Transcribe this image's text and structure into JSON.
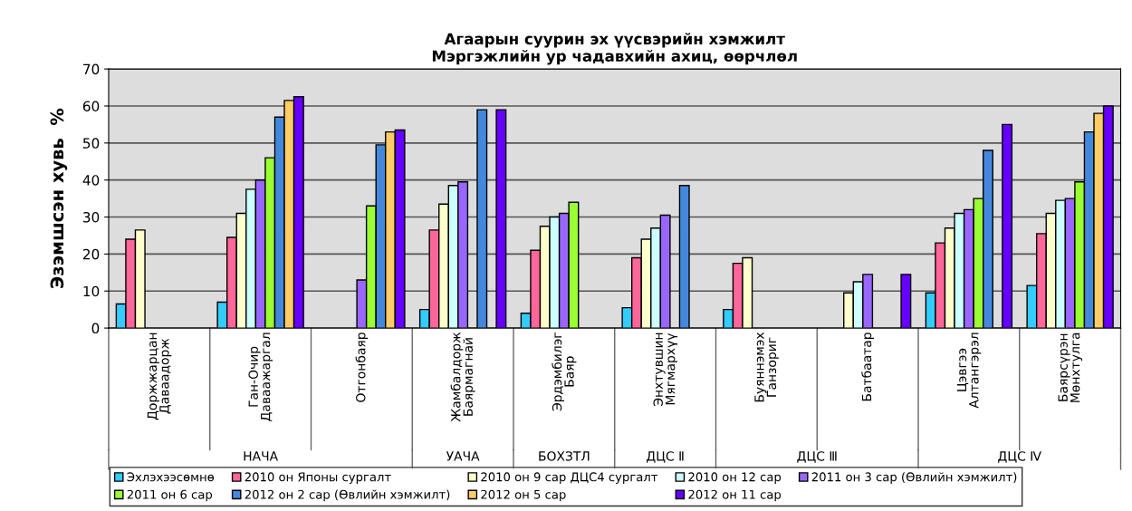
{
  "chart_data": {
    "type": "bar",
    "title": "Агаарын суурин эх үүсвэрийн хэмжилт\nМэргэжлийн ур чадавхийн ахиц, өөрчлөл",
    "ylabel": "Эзэмшсэн хувь  %",
    "categories": [
      "Доржжарцан\nДаваадорж",
      "Ган-Очир\nДаваажаргал",
      "Отгонбаяр",
      "Жамбалдорж\nБаярмагнай",
      "Эрдэмбилэг\nБаяр",
      "Энхтувшин\nМягмархүү",
      "Буяннэмэх\nГанзориг",
      "Батбаатар",
      "Цэвгээ\nАлтангэрэл",
      "Баярсүрэн\nМөнхтулга"
    ],
    "series": [
      {
        "name": "Эхлэхээсөмнө",
        "color": "#33ccff",
        "values": [
          6.5,
          7,
          null,
          5,
          4,
          5.5,
          5,
          null,
          9.5,
          11.5
        ]
      },
      {
        "name": "2010 он Японы сургалт",
        "color": "#ff6699",
        "values": [
          24,
          24.5,
          null,
          26.5,
          21,
          19,
          17.5,
          null,
          23,
          25.5
        ]
      },
      {
        "name": "2010 он 9 сар ДЦС4 сургалт",
        "color": "#ffffcc",
        "values": [
          26.5,
          31,
          null,
          33.5,
          27.5,
          24,
          19,
          9.5,
          27,
          31
        ]
      },
      {
        "name": "2010 он 12 сар",
        "color": "#ccffff",
        "values": [
          null,
          37.5,
          null,
          38.5,
          30,
          27,
          null,
          12.5,
          31,
          34.5
        ]
      },
      {
        "name": "2011 он 3 сар (Өвлийн хэмжилт)",
        "color": "#9966ff",
        "values": [
          null,
          40,
          13,
          39.5,
          31,
          30.5,
          null,
          14.5,
          32,
          35
        ]
      },
      {
        "name": "2011 он 6 сар",
        "color": "#99ff33",
        "values": [
          null,
          46,
          33,
          null,
          34,
          null,
          null,
          null,
          35,
          39.5
        ]
      },
      {
        "name": "2012 он 2 сар (Өвлийн хэмжилт)",
        "color": "#4488dd",
        "values": [
          null,
          57,
          49.5,
          59,
          null,
          38.5,
          null,
          null,
          48,
          53
        ]
      },
      {
        "name": "2012 он 5 сар",
        "color": "#ffcc66",
        "values": [
          null,
          61.5,
          53,
          null,
          null,
          null,
          null,
          null,
          null,
          58
        ]
      },
      {
        "name": "2012 он 11 сар",
        "color": "#6600ff",
        "values": [
          null,
          62.5,
          53.5,
          59,
          null,
          null,
          null,
          14.5,
          55,
          60
        ]
      }
    ],
    "ylim": [
      0,
      70
    ],
    "yticks": [
      0,
      10,
      20,
      30,
      40,
      50,
      60,
      70
    ],
    "grid": "y",
    "legend": "bottom",
    "annotations": [
      "НАЧА",
      "УАЧА",
      "БОХЗТЛ",
      "ДЦС Ⅱ",
      "ДЦС Ⅲ",
      "ДЦС Ⅳ"
    ]
  }
}
